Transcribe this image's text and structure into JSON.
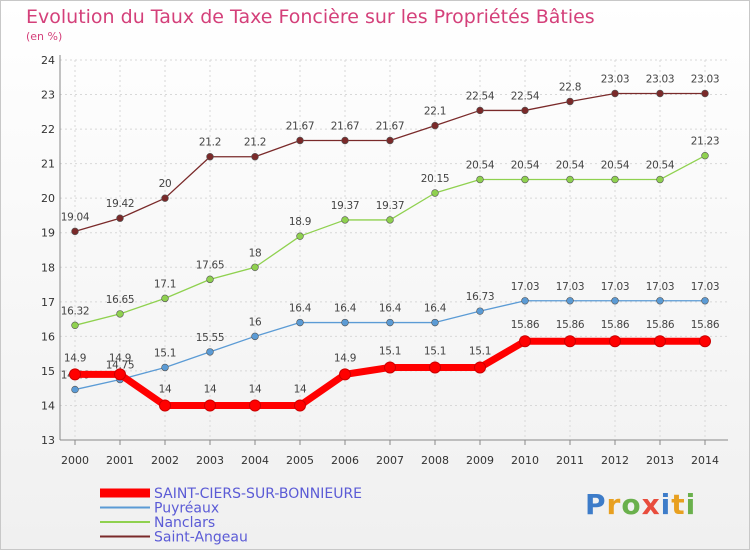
{
  "chart_data": {
    "type": "line",
    "title": "Evolution du Taux de Taxe Foncière sur les Propriétés Bâties",
    "subtitle": "(en %)",
    "categories": [
      "2000",
      "2001",
      "2002",
      "2003",
      "2004",
      "2005",
      "2006",
      "2007",
      "2008",
      "2009",
      "2010",
      "2011",
      "2012",
      "2013",
      "2014"
    ],
    "ylim": [
      13,
      24
    ],
    "yticks": [
      13,
      14,
      15,
      16,
      17,
      18,
      19,
      20,
      21,
      22,
      23,
      24
    ],
    "grid": true,
    "legend_position": "bottom-left",
    "series": [
      {
        "name": "SAINT-CIERS-SUR-BONNIEURE",
        "color": "#ff0000",
        "values": [
          14.9,
          14.9,
          14,
          14,
          14,
          14,
          14.9,
          15.1,
          15.1,
          15.1,
          15.86,
          15.86,
          15.86,
          15.86,
          15.86
        ],
        "labels": [
          "14.9",
          "14.9",
          "14",
          "14",
          "14",
          "14",
          "14.9",
          "15.1",
          "15.1",
          "15.1",
          "15.86",
          "15.86",
          "15.86",
          "15.86",
          "15.86"
        ]
      },
      {
        "name": "Puyréaux",
        "color": "#5b9bd5",
        "values": [
          14.46,
          14.75,
          15.1,
          15.55,
          16,
          16.4,
          16.4,
          16.4,
          16.4,
          16.73,
          17.03,
          17.03,
          17.03,
          17.03,
          17.03
        ],
        "labels": [
          "14.46",
          "14.75",
          "15.1",
          "15.55",
          "16",
          "16.4",
          "16.4",
          "16.4",
          "16.4",
          "16.73",
          "17.03",
          "17.03",
          "17.03",
          "17.03",
          "17.03"
        ]
      },
      {
        "name": "Nanclars",
        "color": "#8fd14f",
        "values": [
          16.32,
          16.65,
          17.1,
          17.65,
          18,
          18.9,
          19.37,
          19.37,
          20.15,
          20.54,
          20.54,
          20.54,
          20.54,
          20.54,
          21.23
        ],
        "labels": [
          "16.32",
          "16.65",
          "17.1",
          "17.65",
          "18",
          "18.9",
          "19.37",
          "19.37",
          "20.15",
          "20.54",
          "20.54",
          "20.54",
          "20.54",
          "20.54",
          "21.23"
        ]
      },
      {
        "name": "Saint-Angeau",
        "color": "#7a2a2a",
        "values": [
          19.04,
          19.42,
          20,
          21.2,
          21.2,
          21.67,
          21.67,
          21.67,
          22.1,
          22.54,
          22.54,
          22.8,
          23.03,
          23.03,
          23.03
        ],
        "labels": [
          "19.04",
          "19.42",
          "20",
          "21.2",
          "21.2",
          "21.67",
          "21.67",
          "21.67",
          "22.1",
          "22.54",
          "22.54",
          "22.8",
          "23.03",
          "23.03",
          "23.03"
        ]
      }
    ]
  },
  "logo": {
    "text": [
      "P",
      "r",
      "o",
      "x",
      "i",
      "t",
      "i"
    ],
    "colors": [
      "#3d7cc9",
      "#e8a020",
      "#6ab04c",
      "#e84c3d",
      "#3d7cc9",
      "#e8a020",
      "#6ab04c"
    ]
  }
}
